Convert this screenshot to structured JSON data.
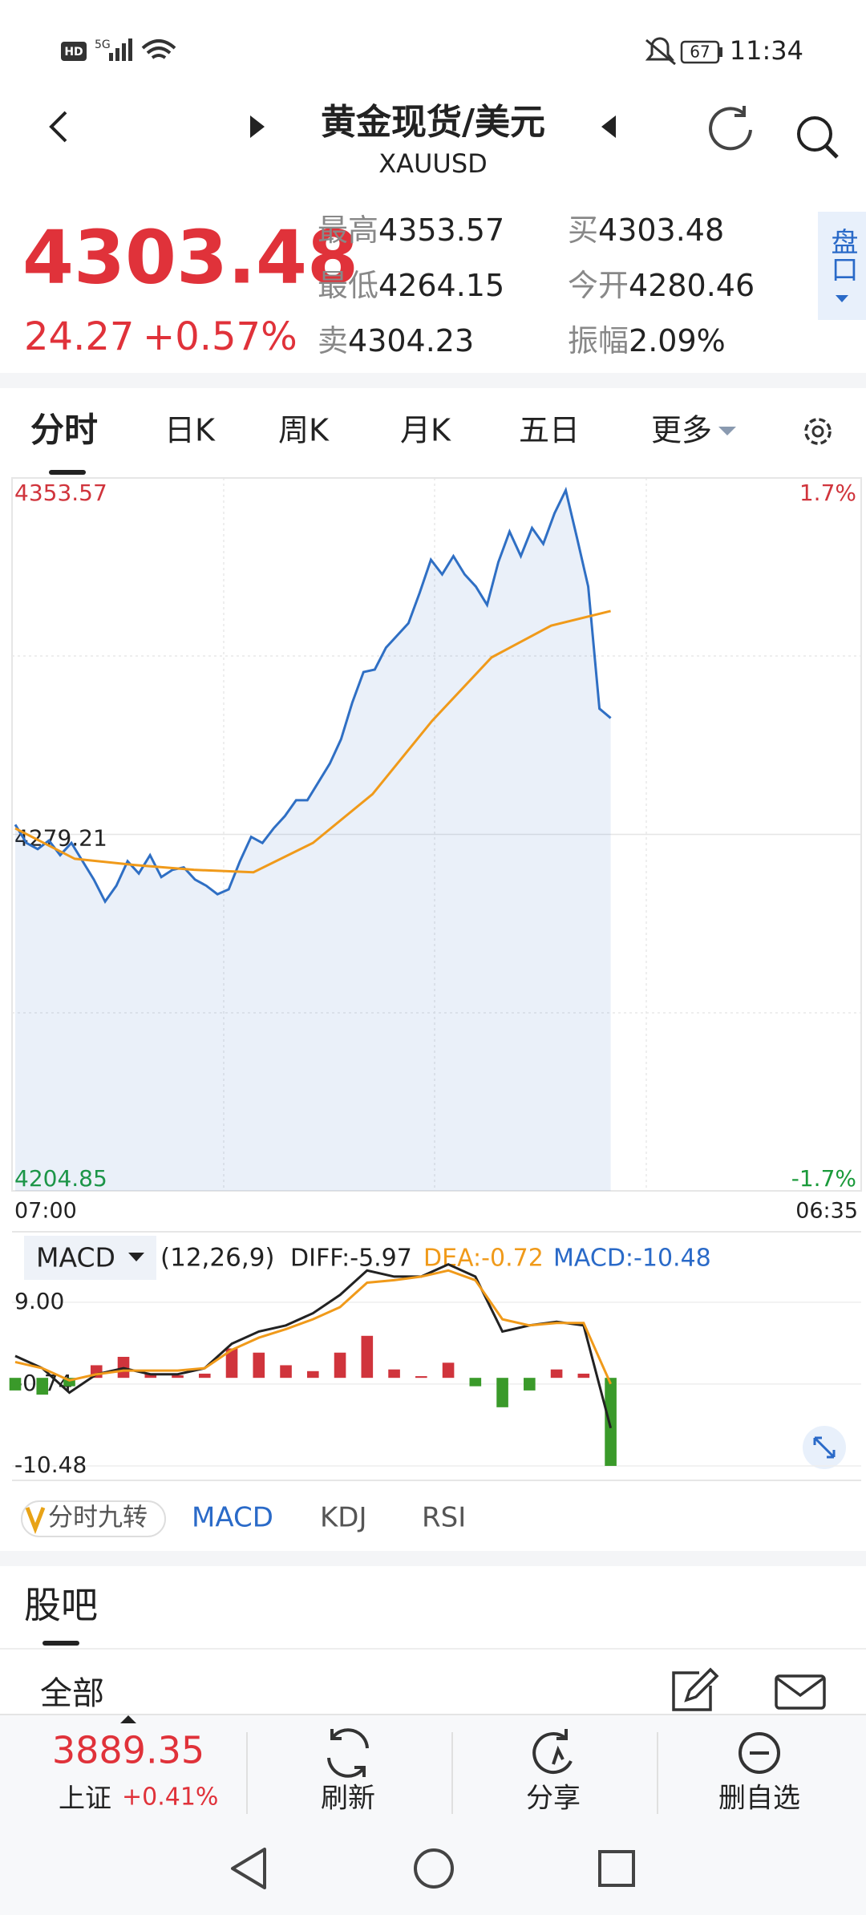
{
  "status_bar": {
    "hd": "HD",
    "network": "5G",
    "battery": "67",
    "time": "11:34"
  },
  "header": {
    "title": "黄金现货/美元",
    "subtitle": "XAUUSD"
  },
  "quote": {
    "price": "4303.48",
    "change": "24.27",
    "change_pct": "+0.57%",
    "stats": [
      {
        "label": "最高",
        "value": "4353.57"
      },
      {
        "label": "最低",
        "value": "4264.15"
      },
      {
        "label": "卖",
        "value": "4304.23"
      },
      {
        "label": "买",
        "value": "4303.48"
      },
      {
        "label": "今开",
        "value": "4280.46"
      },
      {
        "label": "振幅",
        "value": "2.09%"
      }
    ],
    "side_button": "盘口"
  },
  "tabs": [
    "分时",
    "日K",
    "周K",
    "月K",
    "五日",
    "更多"
  ],
  "chart_data": [
    {
      "type": "line",
      "series": [
        {
          "color": "#2f6fc4",
          "values": [
            4281.25,
            4277.43,
            4276.15,
            4277.94,
            4274.88,
            4277.43,
            4273.61,
            4269.79,
            4265.2,
            4268.51,
            4273.61,
            4271.06,
            4274.88,
            4270.3,
            4271.82,
            4272.33,
            4269.79,
            4268.51,
            4266.73,
            4267.75,
            4273.61,
            4278.7,
            4277.43,
            4280.48,
            4283.03,
            4286.34,
            4286.34,
            4290.16,
            4293.98,
            4299.07,
            4306.71,
            4313.08,
            4313.59,
            4318.17,
            4320.72,
            4323.27,
            4329.63,
            4336.51,
            4333.45,
            4337.27,
            4333.45,
            4330.91,
            4327.09,
            4336.0,
            4342.37,
            4337.27,
            4343.13,
            4339.82,
            4346.19,
            4351.0,
            4341.09,
            4330.91,
            4305.44,
            4303.48
          ]
        },
        {
          "color": "#f09a1a",
          "values": [
            4280.48,
            4274.12,
            4272.84,
            4271.82,
            4271.31,
            4277.43,
            4287.61,
            4302.89,
            4316.14,
            4322.76,
            4325.81
          ]
        }
      ],
      "ylim": [
        4204.85,
        4353.57
      ],
      "yticks": [
        4204.85,
        4279.21,
        4353.57
      ],
      "y2lim": [
        -1.7,
        1.7
      ],
      "y2ticks": [
        {
          "value": -1.7,
          "label": "-1.7%"
        },
        {
          "value": 1.7,
          "label": "1.7%"
        }
      ],
      "xlabels": [
        "07:00",
        "06:35"
      ],
      "grid": true
    },
    {
      "type": "line",
      "indicator": "MACD",
      "params": "(12,26,9)",
      "series": [
        {
          "name": "DIFF:-5.97",
          "color": "#222222",
          "values": [
            2.6,
            1.15,
            -1.76,
            0.42,
            1.15,
            0.42,
            0.42,
            1.15,
            4.06,
            5.51,
            6.24,
            7.69,
            9.87,
            12.78,
            12.05,
            12.05,
            13.51,
            12.05,
            5.51,
            6.24,
            6.67,
            6.24,
            -5.97
          ]
        },
        {
          "name": "DEA:-0.72",
          "color": "#f09a1a",
          "values": [
            1.88,
            1.15,
            -0.3,
            0.42,
            0.86,
            0.86,
            0.86,
            1.15,
            3.33,
            4.78,
            5.8,
            6.97,
            8.42,
            11.33,
            11.62,
            12.05,
            12.78,
            11.62,
            6.97,
            6.24,
            6.53,
            6.53,
            -0.72
          ]
        },
        {
          "name": "MACD:-10.48",
          "type": "bar",
          "color": "#2a6ac8",
          "values": [
            -1.5,
            -2.0,
            -1.0,
            1.5,
            2.5,
            0.5,
            0.3,
            0.5,
            3.5,
            3.0,
            1.5,
            0.8,
            3.0,
            5.0,
            1.0,
            0.2,
            1.8,
            -1.0,
            -3.5,
            -1.5,
            1.0,
            0.5,
            -10.48
          ]
        }
      ],
      "up_color": "#d0343c",
      "down_color": "#3a9a2a",
      "ylim": [
        -12.2,
        17.1
      ],
      "yticks": [
        {
          "value": 9,
          "label": "9.00"
        },
        -0.74,
        -10.48
      ]
    }
  ],
  "indicator_tabs": [
    "分时九转",
    "MACD",
    "KDJ",
    "RSI"
  ],
  "forum": {
    "title": "股吧",
    "filter": "全部"
  },
  "bottom_bar": {
    "index_value": "3889.35",
    "index_name": "上证",
    "index_change": "+0.41%",
    "actions": [
      "刷新",
      "分享",
      "删自选"
    ]
  }
}
